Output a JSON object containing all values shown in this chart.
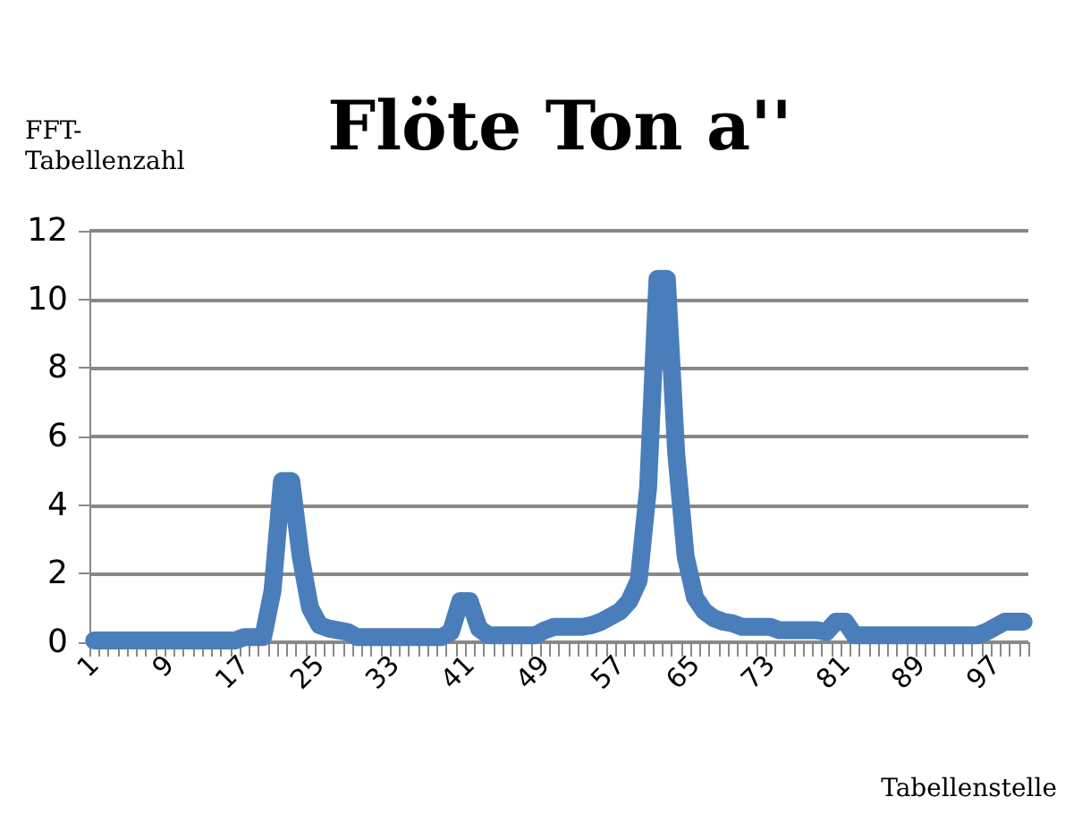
{
  "chart_data": {
    "type": "line",
    "title": "Flöte Ton a''",
    "ylabel": "FFT-\nTabellenzahl",
    "xlabel": "Tabellenstelle",
    "categories": [
      "1",
      null,
      null,
      null,
      null,
      null,
      null,
      null,
      "9",
      null,
      null,
      null,
      null,
      null,
      null,
      null,
      "17",
      null,
      null,
      null,
      null,
      null,
      null,
      null,
      "25",
      null,
      null,
      null,
      null,
      null,
      null,
      null,
      "33",
      null,
      null,
      null,
      null,
      null,
      null,
      null,
      "41",
      null,
      null,
      null,
      null,
      null,
      null,
      null,
      "49",
      null,
      null,
      null,
      null,
      null,
      null,
      null,
      "57",
      null,
      null,
      null,
      null,
      null,
      null,
      null,
      "65",
      null,
      null,
      null,
      null,
      null,
      null,
      null,
      "73",
      null,
      null,
      null,
      null,
      null,
      null,
      null,
      "81",
      null,
      null,
      null,
      null,
      null,
      null,
      null,
      "89",
      null,
      null,
      null,
      null,
      null,
      null,
      null,
      "97",
      null,
      null,
      null
    ],
    "series": [
      {
        "color": "#4a7ebb",
        "values": [
          0.05,
          0.05,
          0.05,
          0.05,
          0.05,
          0.05,
          0.05,
          0.05,
          0.05,
          0.05,
          0.05,
          0.05,
          0.05,
          0.05,
          0.05,
          0.05,
          0.15,
          0.15,
          0.15,
          1.5,
          4.7,
          4.7,
          2.5,
          1.0,
          0.5,
          0.4,
          0.35,
          0.3,
          0.15,
          0.15,
          0.15,
          0.15,
          0.15,
          0.15,
          0.15,
          0.15,
          0.15,
          0.15,
          0.3,
          1.2,
          1.2,
          0.4,
          0.2,
          0.2,
          0.2,
          0.2,
          0.2,
          0.2,
          0.35,
          0.45,
          0.45,
          0.45,
          0.45,
          0.5,
          0.6,
          0.75,
          0.9,
          1.2,
          1.8,
          4.5,
          10.6,
          10.6,
          5.5,
          2.5,
          1.3,
          0.9,
          0.7,
          0.6,
          0.55,
          0.45,
          0.45,
          0.45,
          0.45,
          0.35,
          0.35,
          0.35,
          0.35,
          0.35,
          0.3,
          0.6,
          0.6,
          0.2,
          0.2,
          0.2,
          0.2,
          0.2,
          0.2,
          0.2,
          0.2,
          0.2,
          0.2,
          0.2,
          0.2,
          0.2,
          0.2,
          0.3,
          0.45,
          0.6,
          0.6,
          0.6
        ]
      }
    ],
    "ylim": [
      0,
      12
    ],
    "yticks": [
      0,
      2,
      4,
      6,
      8,
      10,
      12
    ],
    "grid": "y",
    "line_style": "solid"
  }
}
